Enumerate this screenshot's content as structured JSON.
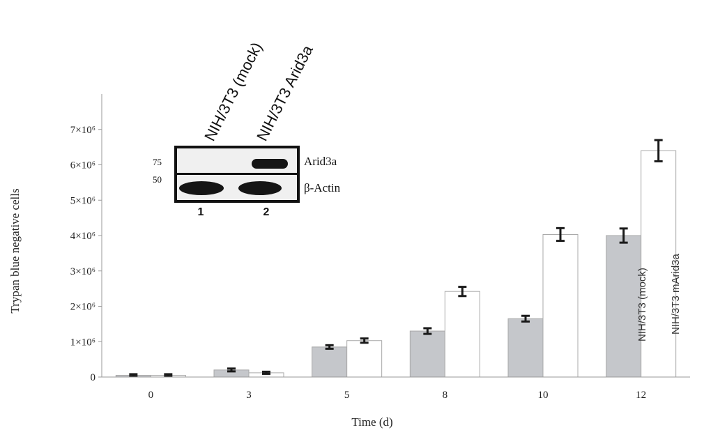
{
  "chart_data": {
    "type": "bar",
    "xlabel": "Time (d)",
    "ylabel": "Trypan blue negative cells",
    "categories": [
      "0",
      "3",
      "5",
      "8",
      "10",
      "12"
    ],
    "ylim": [
      0,
      8000000
    ],
    "y_ticks": [
      {
        "value": 0,
        "label": "0"
      },
      {
        "value": 1000000,
        "label": "1×10⁶"
      },
      {
        "value": 2000000,
        "label": "2×10⁶"
      },
      {
        "value": 3000000,
        "label": "3×10⁶"
      },
      {
        "value": 4000000,
        "label": "4×10⁶"
      },
      {
        "value": 5000000,
        "label": "5×10⁶"
      },
      {
        "value": 6000000,
        "label": "6×10⁶"
      },
      {
        "value": 7000000,
        "label": "7×10⁶"
      }
    ],
    "series": [
      {
        "name": "NIH/3T3 (mock)",
        "color": "#c5c7cb",
        "values": [
          50000,
          200000,
          850000,
          1300000,
          1650000,
          4000000
        ],
        "errors": [
          30000,
          40000,
          50000,
          80000,
          80000,
          200000
        ]
      },
      {
        "name": "NIH/3T3 mArid3a",
        "color": "#ffffff",
        "values": [
          50000,
          120000,
          1030000,
          2420000,
          4030000,
          6400000
        ],
        "errors": [
          30000,
          30000,
          60000,
          130000,
          180000,
          300000
        ]
      }
    ],
    "bar_annotations": {
      "mock": "NIH/3T3 (mock)",
      "arid": "NIH/3T3 mArid3a"
    },
    "inset_blot": {
      "column_labels": [
        "NIH/3T3 (mock)",
        "NIH/3T3 Arid3a"
      ],
      "marker_labels": [
        "75",
        "50"
      ],
      "band_labels": [
        "Arid3a",
        "β-Actin"
      ],
      "lane_numbers": [
        "1",
        "2"
      ]
    }
  }
}
